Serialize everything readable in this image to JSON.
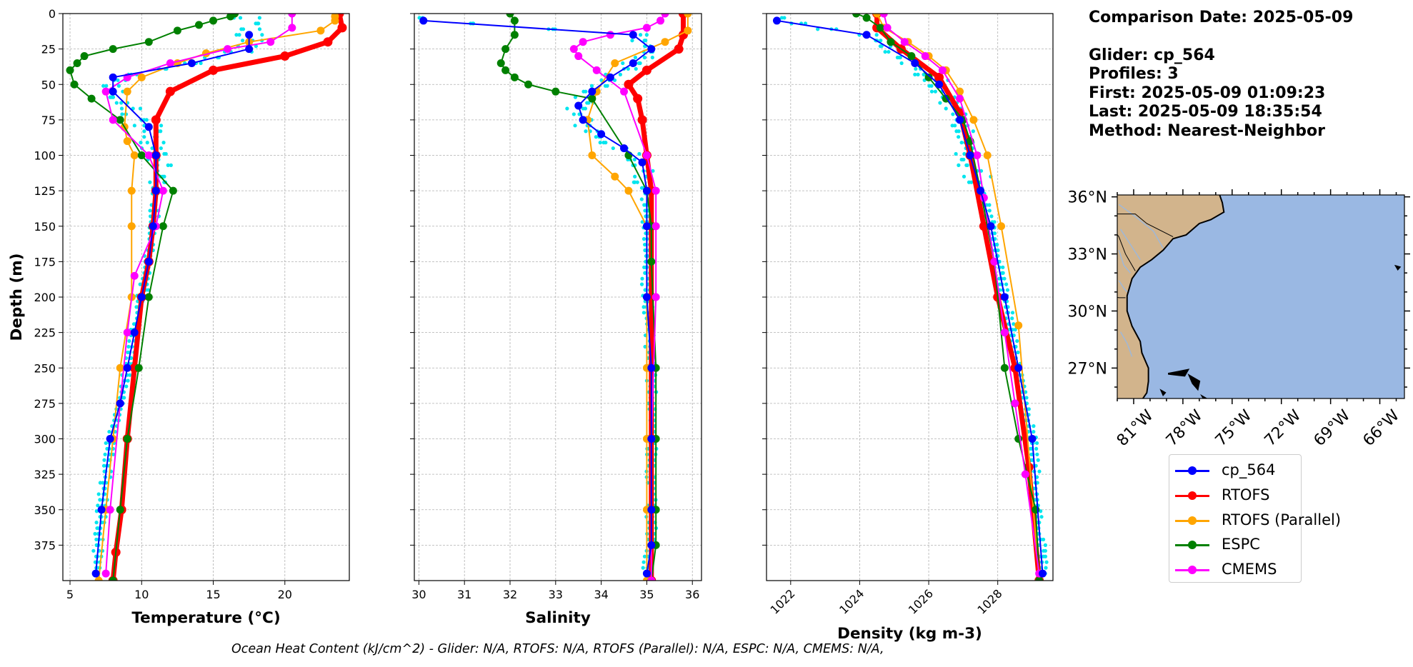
{
  "colors": {
    "glider": "#0000ff",
    "rtofs": "#ff0000",
    "rtofs_parallel": "#ffa500",
    "espc": "#008000",
    "cmems": "#ff00ff",
    "glider_raw": "#00e5ee",
    "land": "#d2b48c",
    "ocean": "#9ab8e3"
  },
  "info": {
    "comparison_date": "Comparison Date: 2025-05-09",
    "glider": "Glider: cp_564",
    "profiles": "Profiles: 3",
    "first": "First: 2025-05-09 01:09:23",
    "last": "Last: 2025-05-09 18:35:54",
    "method": "Method: Nearest-Neighbor"
  },
  "footer": "Ocean Heat Content (kJ/cm^2) - Glider: N/A,  RTOFS: N/A,  RTOFS (Parallel): N/A,  ESPC: N/A,  CMEMS: N/A,",
  "legend": [
    {
      "label": "cp_564",
      "color": "#0000ff"
    },
    {
      "label": "RTOFS",
      "color": "#ff0000"
    },
    {
      "label": "RTOFS (Parallel)",
      "color": "#ffa500"
    },
    {
      "label": "ESPC",
      "color": "#008000"
    },
    {
      "label": "CMEMS",
      "color": "#ff00ff"
    }
  ],
  "map": {
    "lat_ticks": [
      "36°N",
      "33°N",
      "30°N",
      "27°N"
    ],
    "lon_ticks": [
      "81°W",
      "78°W",
      "75°W",
      "72°W",
      "69°W",
      "66°W"
    ],
    "lat_values": [
      36,
      33,
      30,
      27
    ],
    "lon_values": [
      -81,
      -78,
      -75,
      -72,
      -69,
      -66
    ],
    "extent": {
      "lon": [
        -82,
        -64.5
      ],
      "lat": [
        25.4,
        36.1
      ]
    }
  },
  "chart_data": [
    {
      "type": "line",
      "xlabel": "Temperature (°C)",
      "ylabel": "Depth (m)",
      "xlim": [
        4.5,
        24.5
      ],
      "ylim": [
        400,
        0
      ],
      "xticks": [
        5,
        10,
        15,
        20
      ],
      "yticks": [
        0,
        25,
        50,
        75,
        100,
        125,
        150,
        175,
        200,
        225,
        250,
        275,
        300,
        325,
        350,
        375
      ],
      "grid": true,
      "series": [
        {
          "name": "cp_564",
          "color": "#0000ff",
          "x": [
            17.5,
            17.5,
            13.5,
            8.0,
            8.0,
            10.5,
            11.0,
            11.0,
            10.8,
            10.5,
            10.0,
            9.5,
            9.0,
            8.5,
            7.8,
            7.2,
            6.8
          ],
          "y": [
            15,
            25,
            35,
            45,
            55,
            80,
            100,
            125,
            150,
            175,
            200,
            225,
            250,
            275,
            300,
            350,
            395
          ]
        },
        {
          "name": "RTOFS",
          "color": "#ff0000",
          "x": [
            23.8,
            24.0,
            23.0,
            20.0,
            15.0,
            12.0,
            11.0,
            11.0,
            11.0,
            10.8,
            10.5,
            10.0,
            9.5,
            9.0,
            8.6,
            8.2,
            8.0
          ],
          "y": [
            0,
            10,
            20,
            30,
            40,
            55,
            75,
            100,
            125,
            150,
            175,
            200,
            250,
            300,
            350,
            380,
            400
          ]
        },
        {
          "name": "RTOFS (Parallel)",
          "color": "#ffa500",
          "x": [
            23.5,
            23.5,
            22.5,
            17.5,
            14.5,
            12.5,
            10.0,
            9.0,
            8.8,
            9.0,
            9.5,
            9.3,
            9.3,
            9.3,
            8.5,
            8.0,
            7.5,
            7.0
          ],
          "y": [
            2,
            5,
            12,
            20,
            28,
            35,
            45,
            55,
            80,
            90,
            100,
            125,
            150,
            200,
            250,
            300,
            350,
            400
          ]
        },
        {
          "name": "ESPC",
          "color": "#008000",
          "x": [
            16.5,
            16.2,
            15.0,
            14.0,
            12.5,
            10.5,
            8.0,
            6.0,
            5.5,
            5.0,
            5.3,
            6.5,
            8.5,
            10.0,
            12.2,
            11.5,
            10.5,
            9.8,
            9.0,
            8.5,
            8.0
          ],
          "y": [
            0,
            2,
            5,
            8,
            12,
            20,
            25,
            30,
            35,
            40,
            50,
            60,
            75,
            100,
            125,
            150,
            200,
            250,
            300,
            350,
            400
          ]
        },
        {
          "name": "CMEMS",
          "color": "#ff00ff",
          "x": [
            20.5,
            20.5,
            19.0,
            16.0,
            12.0,
            9.0,
            7.5,
            8.0,
            10.5,
            11.5,
            11.0,
            9.5,
            9.0,
            8.5,
            7.8,
            7.5
          ],
          "y": [
            0,
            10,
            20,
            25,
            35,
            45,
            55,
            75,
            100,
            125,
            150,
            185,
            225,
            275,
            350,
            395
          ]
        }
      ]
    },
    {
      "type": "line",
      "xlabel": "Salinity",
      "xlim": [
        29.9,
        36.2
      ],
      "ylim": [
        400,
        0
      ],
      "xticks": [
        30,
        31,
        32,
        33,
        34,
        35,
        36
      ],
      "grid": true,
      "series": [
        {
          "name": "cp_564",
          "color": "#0000ff",
          "x": [
            30.1,
            34.7,
            35.1,
            34.7,
            34.2,
            33.8,
            33.5,
            33.6,
            34.0,
            34.5,
            34.9,
            35.0,
            35.0,
            35.0,
            35.1,
            35.1,
            35.1,
            35.1,
            35.0
          ],
          "y": [
            5,
            15,
            25,
            35,
            45,
            55,
            65,
            75,
            85,
            95,
            105,
            125,
            150,
            200,
            250,
            300,
            350,
            375,
            395
          ]
        },
        {
          "name": "RTOFS",
          "color": "#ff0000",
          "x": [
            35.8,
            35.8,
            35.7,
            35.0,
            34.6,
            34.8,
            34.9,
            35.0,
            35.1,
            35.1,
            35.1,
            35.1,
            35.1,
            35.1
          ],
          "y": [
            0,
            15,
            25,
            40,
            50,
            60,
            75,
            100,
            125,
            150,
            200,
            250,
            300,
            400
          ]
        },
        {
          "name": "RTOFS (Parallel)",
          "color": "#ffa500",
          "x": [
            35.9,
            35.9,
            35.4,
            34.3,
            33.9,
            33.7,
            33.8,
            34.3,
            34.6,
            35.0,
            35.0,
            35.0,
            35.0,
            35.0,
            35.0
          ],
          "y": [
            0,
            12,
            20,
            35,
            55,
            75,
            100,
            115,
            125,
            150,
            200,
            250,
            300,
            350,
            400
          ]
        },
        {
          "name": "ESPC",
          "color": "#008000",
          "x": [
            32.0,
            32.1,
            32.1,
            31.9,
            31.8,
            31.9,
            32.1,
            32.4,
            33.0,
            33.8,
            34.6,
            35.0,
            35.1,
            35.1,
            35.2,
            35.2,
            35.2,
            35.2,
            35.1
          ],
          "y": [
            0,
            5,
            15,
            25,
            35,
            40,
            45,
            50,
            55,
            60,
            100,
            125,
            150,
            175,
            250,
            300,
            350,
            375,
            400
          ]
        },
        {
          "name": "CMEMS",
          "color": "#ff00ff",
          "x": [
            35.4,
            35.3,
            35.0,
            34.2,
            33.6,
            33.4,
            33.5,
            33.9,
            34.5,
            35.0,
            35.2,
            35.2,
            35.2,
            35.1,
            35.1
          ],
          "y": [
            0,
            5,
            10,
            15,
            20,
            25,
            30,
            40,
            55,
            100,
            125,
            150,
            200,
            300,
            400
          ]
        }
      ]
    },
    {
      "type": "line",
      "xlabel": "Density (kg m-3)",
      "xlim": [
        1021.3,
        1029.6
      ],
      "ylim": [
        400,
        0
      ],
      "xticks": [
        1022,
        1024,
        1026,
        1028
      ],
      "grid": true,
      "series": [
        {
          "name": "cp_564",
          "color": "#0000ff",
          "x": [
            1021.6,
            1024.2,
            1025.6,
            1026.3,
            1026.9,
            1027.2,
            1027.5,
            1027.8,
            1028.2,
            1028.6,
            1029.0,
            1029.3
          ],
          "y": [
            5,
            15,
            35,
            50,
            75,
            100,
            125,
            150,
            200,
            250,
            300,
            395
          ]
        },
        {
          "name": "RTOFS",
          "color": "#ff0000",
          "x": [
            1024.5,
            1024.5,
            1025.2,
            1026.3,
            1026.9,
            1027.2,
            1027.6,
            1028.0,
            1028.5,
            1028.9,
            1029.2
          ],
          "y": [
            0,
            10,
            25,
            45,
            70,
            100,
            150,
            200,
            250,
            320,
            400
          ]
        },
        {
          "name": "RTOFS (Parallel)",
          "color": "#ffa500",
          "x": [
            1024.5,
            1024.7,
            1025.4,
            1026.0,
            1026.5,
            1026.9,
            1027.3,
            1027.7,
            1028.1,
            1028.6,
            1029.2
          ],
          "y": [
            0,
            10,
            20,
            30,
            40,
            55,
            75,
            100,
            150,
            220,
            400
          ]
        },
        {
          "name": "ESPC",
          "color": "#008000",
          "x": [
            1023.9,
            1024.2,
            1024.6,
            1024.9,
            1025.5,
            1026.0,
            1026.5,
            1027.0,
            1027.2,
            1027.5,
            1027.9,
            1028.2,
            1028.6,
            1029.1,
            1029.2
          ],
          "y": [
            0,
            3,
            10,
            20,
            30,
            45,
            60,
            75,
            90,
            125,
            175,
            250,
            300,
            350,
            400
          ]
        },
        {
          "name": "CMEMS",
          "color": "#ff00ff",
          "x": [
            1024.7,
            1024.8,
            1025.3,
            1025.9,
            1026.4,
            1026.9,
            1027.4,
            1027.6,
            1027.9,
            1028.2,
            1028.5,
            1028.8,
            1029.2
          ],
          "y": [
            0,
            10,
            20,
            30,
            40,
            60,
            100,
            130,
            175,
            225,
            275,
            325,
            395
          ]
        }
      ]
    }
  ]
}
